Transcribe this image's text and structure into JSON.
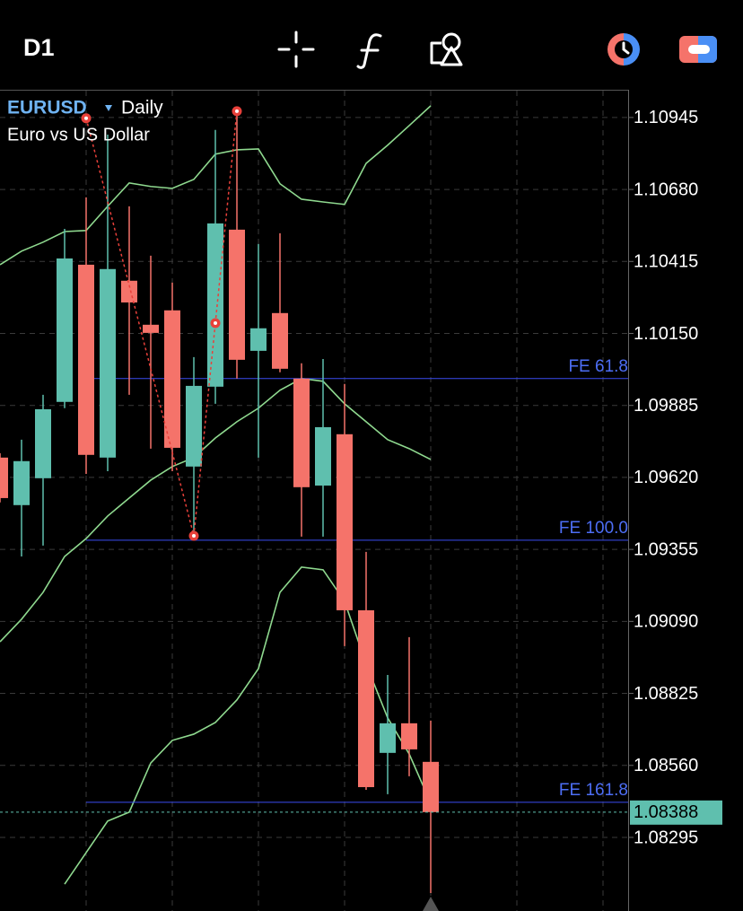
{
  "header": {
    "timeframe": "D1"
  },
  "chart_data": {
    "type": "candlestick",
    "symbol": "EURUSD",
    "period": "Daily",
    "description": "Euro vs US Dollar",
    "open": [
      1.09693,
      1.09518,
      1.09617,
      1.09898,
      1.10403,
      1.09693,
      1.10344,
      1.10182,
      1.10235,
      1.0966,
      1.09954,
      1.10532,
      1.10086,
      1.10225,
      1.09984,
      1.0959,
      1.09779,
      1.09131,
      1.08606,
      1.08715,
      1.08573
    ],
    "high": [
      1.09709,
      1.09759,
      1.09924,
      1.10535,
      1.10651,
      1.10882,
      1.10618,
      1.10436,
      1.10337,
      1.10063,
      1.10899,
      1.10968,
      1.10479,
      1.10519,
      1.1004,
      1.10056,
      1.09964,
      1.09346,
      1.08893,
      1.09032,
      1.08725
    ],
    "low": [
      1.09528,
      1.09329,
      1.09369,
      1.09875,
      1.09633,
      1.09643,
      1.09924,
      1.09726,
      1.09643,
      1.09405,
      1.09891,
      1.09984,
      1.09693,
      1.10007,
      1.09402,
      1.09402,
      1.08999,
      1.0847,
      1.08454,
      1.0852,
      1.0809
    ],
    "close": [
      1.09544,
      1.0968,
      1.09871,
      1.10426,
      1.09703,
      1.10387,
      1.10264,
      1.10152,
      1.09729,
      1.09957,
      1.10555,
      1.10053,
      1.10169,
      1.1002,
      1.09584,
      1.09805,
      1.09131,
      1.0848,
      1.08715,
      1.08619,
      1.08388
    ],
    "up_color": "#5fbfae",
    "down_color": "#f5736a",
    "ylim": [
      1.08024,
      1.11047
    ],
    "yticks": [
      1.10945,
      {
        "value": 1.1068,
        "label": "1.10680"
      },
      1.10415,
      {
        "value": 1.1015,
        "label": "1.10150"
      },
      1.09885,
      {
        "value": 1.0962,
        "label": "1.09620"
      },
      1.09355,
      {
        "value": 1.0909,
        "label": "1.09090"
      },
      1.08825,
      {
        "value": 1.0856,
        "label": "1.08560"
      },
      1.08295
    ],
    "grid": true,
    "band_color": "#8fd98f",
    "bands": [
      {
        "values": [
          1.10403,
          1.10453,
          1.10486,
          1.10525,
          1.10529,
          1.10618,
          1.10704,
          1.10691,
          1.10684,
          1.10717,
          1.1081,
          1.10826,
          1.10829,
          1.10701,
          1.10644,
          1.10634,
          1.10625,
          1.10776,
          1.10843,
          1.10915,
          1.10988
        ]
      },
      {
        "values": [
          1.09015,
          1.09098,
          1.09197,
          1.09329,
          1.09395,
          1.09478,
          1.09544,
          1.0961,
          1.0966,
          1.09693,
          1.09765,
          1.09825,
          1.09875,
          1.09941,
          1.09984,
          1.09974,
          1.09891,
          1.09825,
          1.09759,
          1.09726,
          1.09686
        ]
      },
      {
        "values": [
          null,
          null,
          null,
          1.08123,
          1.08239,
          1.08355,
          1.08388,
          1.08569,
          1.08652,
          1.08675,
          1.08718,
          1.08801,
          1.08916,
          1.09197,
          1.0929,
          1.0928,
          1.09164,
          1.08933,
          1.08735,
          1.08602,
          1.08421
        ]
      }
    ],
    "fibo": {
      "color": "#e8403a",
      "values": [
        null,
        null,
        null,
        null,
        1.10942,
        null,
        null,
        null,
        null,
        1.09405,
        1.10188,
        1.10968,
        null,
        null,
        null,
        null,
        null,
        null,
        null,
        null,
        null
      ]
    },
    "level_color": "#3a4cf0",
    "level_text_color": "#4d6ef5",
    "levels": [
      {
        "label": "FE 61.8",
        "value": 1.09984
      },
      {
        "label": "FE 100.0",
        "value": 1.09389
      },
      {
        "label": "FE 161.8",
        "value": 1.08424
      }
    ],
    "last_price": 1.08388,
    "last_price_color": "#5fbfae"
  }
}
